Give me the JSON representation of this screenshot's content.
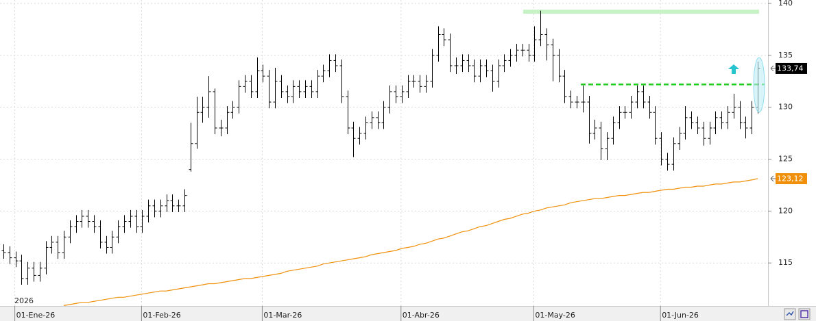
{
  "chart_data": {
    "type": "ohlc",
    "year_label": "2026",
    "categories": [
      null,
      null,
      "01-Ene-26",
      null,
      null,
      null,
      null,
      null,
      null,
      null,
      null,
      null,
      null,
      null,
      null,
      null,
      null,
      null,
      null,
      null,
      null,
      null,
      null,
      "01-Feb-26",
      null,
      null,
      null,
      null,
      null,
      null,
      null,
      null,
      null,
      null,
      null,
      null,
      null,
      null,
      null,
      null,
      null,
      null,
      null,
      "01-Mar-26",
      null,
      null,
      null,
      null,
      null,
      null,
      null,
      null,
      null,
      null,
      null,
      null,
      null,
      null,
      null,
      null,
      null,
      null,
      null,
      null,
      null,
      null,
      "01-Abr-26",
      null,
      null,
      null,
      null,
      null,
      null,
      null,
      null,
      null,
      null,
      null,
      null,
      null,
      null,
      null,
      null,
      null,
      null,
      null,
      null,
      null,
      "01-May-26",
      null,
      null,
      null,
      null,
      null,
      null,
      null,
      null,
      null,
      null,
      null,
      null,
      null,
      null,
      null,
      null,
      null,
      null,
      null,
      null,
      "01-Jun-26",
      null,
      null,
      null,
      null,
      null,
      null,
      null,
      null,
      null,
      null,
      null,
      null,
      null,
      null,
      null,
      null
    ],
    "bar_color": "#000000",
    "ohlc": [
      [
        116.2,
        116.8,
        115.4,
        116.0
      ],
      [
        116.0,
        116.6,
        114.9,
        115.5
      ],
      [
        115.5,
        116.1,
        114.6,
        115.2
      ],
      [
        115.2,
        115.8,
        112.9,
        113.5
      ],
      [
        113.5,
        115.1,
        112.9,
        114.5
      ],
      [
        114.5,
        115.1,
        113.2,
        113.8
      ],
      [
        113.8,
        115.1,
        113.2,
        114.5
      ],
      [
        114.5,
        117.1,
        113.9,
        116.5
      ],
      [
        116.5,
        117.6,
        115.9,
        117.0
      ],
      [
        117.0,
        117.6,
        115.4,
        116.0
      ],
      [
        116.0,
        118.1,
        115.4,
        117.5
      ],
      [
        117.5,
        119.1,
        116.9,
        118.5
      ],
      [
        118.5,
        119.6,
        117.9,
        119.0
      ],
      [
        119.0,
        120.1,
        118.4,
        119.5
      ],
      [
        119.5,
        120.1,
        118.4,
        119.0
      ],
      [
        119.0,
        119.6,
        117.9,
        118.5
      ],
      [
        118.5,
        119.1,
        116.4,
        117.0
      ],
      [
        117.0,
        117.6,
        115.9,
        116.5
      ],
      [
        116.5,
        118.1,
        115.9,
        117.5
      ],
      [
        117.5,
        119.1,
        116.9,
        118.5
      ],
      [
        118.5,
        119.6,
        117.9,
        119.0
      ],
      [
        119.0,
        120.1,
        118.4,
        119.5
      ],
      [
        119.5,
        120.1,
        117.9,
        118.5
      ],
      [
        118.5,
        120.1,
        117.9,
        119.5
      ],
      [
        119.5,
        121.1,
        118.9,
        120.5
      ],
      [
        120.5,
        121.1,
        119.4,
        120.0
      ],
      [
        120.0,
        121.1,
        119.4,
        120.5
      ],
      [
        120.5,
        121.6,
        119.9,
        121.0
      ],
      [
        121.0,
        121.6,
        119.9,
        120.5
      ],
      [
        120.5,
        121.1,
        119.9,
        120.5
      ],
      [
        120.5,
        122.1,
        119.9,
        121.5
      ],
      [
        124.0,
        128.5,
        123.8,
        126.5
      ],
      [
        126.5,
        131.0,
        126.0,
        129.5
      ],
      [
        129.5,
        131.0,
        128.5,
        130.0
      ],
      [
        130.0,
        133.0,
        129.0,
        131.5
      ],
      [
        131.5,
        131.8,
        127.4,
        128.0
      ],
      [
        128.0,
        128.8,
        127.2,
        128.0
      ],
      [
        128.0,
        130.1,
        127.4,
        129.5
      ],
      [
        129.5,
        130.6,
        128.9,
        130.0
      ],
      [
        130.0,
        132.6,
        129.4,
        132.0
      ],
      [
        132.0,
        133.1,
        131.4,
        132.5
      ],
      [
        132.5,
        133.1,
        130.9,
        131.5
      ],
      [
        131.5,
        134.8,
        130.9,
        133.5
      ],
      [
        133.5,
        134.1,
        132.4,
        133.0
      ],
      [
        133.0,
        133.6,
        129.9,
        130.5
      ],
      [
        130.5,
        133.8,
        129.9,
        132.5
      ],
      [
        132.5,
        133.1,
        130.9,
        131.5
      ],
      [
        131.5,
        132.1,
        130.4,
        131.0
      ],
      [
        131.0,
        132.6,
        130.4,
        132.0
      ],
      [
        132.0,
        132.6,
        130.9,
        131.5
      ],
      [
        131.5,
        132.6,
        130.9,
        132.0
      ],
      [
        132.0,
        132.6,
        130.9,
        131.5
      ],
      [
        131.5,
        133.6,
        130.9,
        133.0
      ],
      [
        133.0,
        134.1,
        132.4,
        133.5
      ],
      [
        133.5,
        135.1,
        132.9,
        134.5
      ],
      [
        134.5,
        135.1,
        133.4,
        134.0
      ],
      [
        134.0,
        134.6,
        130.4,
        131.0
      ],
      [
        131.0,
        131.6,
        127.4,
        128.0
      ],
      [
        128.0,
        128.6,
        125.2,
        127.0
      ],
      [
        127.0,
        128.1,
        126.4,
        127.5
      ],
      [
        127.5,
        129.1,
        126.9,
        128.5
      ],
      [
        128.5,
        129.6,
        127.9,
        129.0
      ],
      [
        129.0,
        129.6,
        127.9,
        128.5
      ],
      [
        128.5,
        130.6,
        127.9,
        130.0
      ],
      [
        130.0,
        132.1,
        129.4,
        131.5
      ],
      [
        131.5,
        132.1,
        130.4,
        131.0
      ],
      [
        131.0,
        132.1,
        130.4,
        131.5
      ],
      [
        131.5,
        133.1,
        130.9,
        132.5
      ],
      [
        132.5,
        133.1,
        131.9,
        132.5
      ],
      [
        132.5,
        133.1,
        131.4,
        132.0
      ],
      [
        132.0,
        133.1,
        131.4,
        132.5
      ],
      [
        132.5,
        135.6,
        131.9,
        135.0
      ],
      [
        135.0,
        137.8,
        134.4,
        137.0
      ],
      [
        137.0,
        137.6,
        135.9,
        136.5
      ],
      [
        136.5,
        137.1,
        133.4,
        134.0
      ],
      [
        134.0,
        134.8,
        133.2,
        134.0
      ],
      [
        134.0,
        135.1,
        133.4,
        134.5
      ],
      [
        134.5,
        135.1,
        133.4,
        134.0
      ],
      [
        134.0,
        134.6,
        132.4,
        133.0
      ],
      [
        133.0,
        134.6,
        132.4,
        134.0
      ],
      [
        134.0,
        134.6,
        132.9,
        133.5
      ],
      [
        133.5,
        134.1,
        131.5,
        132.5
      ],
      [
        132.5,
        134.6,
        131.9,
        134.0
      ],
      [
        134.0,
        135.1,
        133.4,
        134.5
      ],
      [
        134.5,
        135.6,
        133.9,
        135.0
      ],
      [
        135.0,
        136.1,
        134.4,
        135.5
      ],
      [
        135.5,
        136.1,
        134.9,
        135.5
      ],
      [
        135.5,
        136.1,
        134.4,
        135.0
      ],
      [
        135.0,
        137.8,
        134.4,
        136.5
      ],
      [
        136.5,
        139.3,
        135.9,
        137.0
      ],
      [
        137.0,
        137.6,
        134.5,
        136.0
      ],
      [
        136.0,
        136.6,
        132.5,
        135.0
      ],
      [
        135.0,
        135.6,
        132.4,
        133.0
      ],
      [
        133.0,
        133.6,
        130.4,
        131.0
      ],
      [
        131.0,
        131.6,
        129.9,
        130.5
      ],
      [
        130.5,
        131.1,
        129.9,
        130.5
      ],
      [
        130.5,
        132.1,
        129.5,
        130.5
      ],
      [
        130.5,
        131.1,
        126.5,
        127.5
      ],
      [
        127.5,
        128.8,
        126.9,
        128.0
      ],
      [
        128.0,
        128.6,
        124.9,
        126.0
      ],
      [
        126.0,
        127.6,
        124.9,
        127.0
      ],
      [
        127.0,
        129.1,
        126.4,
        128.5
      ],
      [
        128.5,
        130.1,
        127.9,
        129.5
      ],
      [
        129.5,
        130.1,
        128.9,
        129.5
      ],
      [
        129.5,
        131.1,
        128.9,
        130.5
      ],
      [
        130.5,
        132.1,
        129.9,
        131.5
      ],
      [
        131.5,
        132.1,
        129.9,
        130.5
      ],
      [
        130.5,
        131.1,
        128.9,
        129.5
      ],
      [
        129.5,
        130.1,
        126.4,
        127.0
      ],
      [
        127.0,
        127.6,
        124.4,
        125.0
      ],
      [
        125.0,
        125.6,
        123.9,
        124.5
      ],
      [
        124.5,
        127.1,
        123.9,
        126.5
      ],
      [
        126.5,
        128.1,
        125.9,
        127.5
      ],
      [
        127.5,
        130.1,
        126.9,
        129.0
      ],
      [
        129.0,
        129.6,
        127.9,
        128.5
      ],
      [
        128.5,
        129.1,
        127.4,
        128.0
      ],
      [
        128.0,
        128.6,
        126.3,
        127.0
      ],
      [
        127.0,
        128.6,
        126.4,
        128.0
      ],
      [
        128.0,
        129.6,
        127.4,
        129.0
      ],
      [
        129.0,
        129.6,
        127.9,
        128.5
      ],
      [
        128.5,
        130.1,
        127.9,
        129.5
      ],
      [
        129.5,
        131.3,
        128.9,
        130.0
      ],
      [
        130.0,
        130.6,
        127.9,
        128.5
      ],
      [
        128.5,
        129.1,
        127.0,
        128.0
      ],
      [
        128.0,
        130.6,
        127.4,
        130.0
      ],
      [
        130.0,
        134.4,
        129.4,
        133.74
      ]
    ],
    "ma": {
      "color": "#f0900a",
      "values": [
        null,
        null,
        null,
        null,
        null,
        null,
        null,
        null,
        null,
        null,
        110.9,
        111.0,
        111.1,
        111.2,
        111.2,
        111.3,
        111.4,
        111.5,
        111.6,
        111.7,
        111.7,
        111.8,
        111.9,
        112.0,
        112.1,
        112.2,
        112.3,
        112.3,
        112.4,
        112.5,
        112.6,
        112.7,
        112.8,
        112.9,
        113.0,
        113.0,
        113.1,
        113.2,
        113.3,
        113.4,
        113.5,
        113.5,
        113.6,
        113.7,
        113.8,
        113.9,
        114.0,
        114.2,
        114.3,
        114.4,
        114.5,
        114.6,
        114.7,
        114.9,
        115.0,
        115.1,
        115.2,
        115.3,
        115.4,
        115.5,
        115.6,
        115.8,
        115.9,
        116.0,
        116.1,
        116.2,
        116.4,
        116.5,
        116.6,
        116.8,
        116.9,
        117.1,
        117.3,
        117.4,
        117.6,
        117.8,
        118.0,
        118.1,
        118.3,
        118.5,
        118.6,
        118.8,
        119.0,
        119.2,
        119.3,
        119.5,
        119.7,
        119.8,
        120.0,
        120.1,
        120.3,
        120.4,
        120.5,
        120.6,
        120.8,
        120.9,
        121.0,
        121.1,
        121.2,
        121.2,
        121.3,
        121.4,
        121.5,
        121.5,
        121.6,
        121.7,
        121.8,
        121.8,
        121.9,
        122.0,
        122.1,
        122.1,
        122.2,
        122.3,
        122.3,
        122.4,
        122.4,
        122.5,
        122.6,
        122.6,
        122.7,
        122.8,
        122.8,
        122.9,
        123.0,
        123.12
      ]
    },
    "levels": [
      {
        "value": 139.2,
        "color": "#c6f2c6",
        "style": "solid"
      },
      {
        "value": 132.2,
        "color": "#22cc22",
        "style": "dashed"
      }
    ],
    "price_labels": [
      {
        "value": 133.74,
        "label": "133,74",
        "color": "#000000"
      },
      {
        "value": 123.12,
        "label": "123,12",
        "color": "#f0900a"
      }
    ],
    "ylim": [
      110.86,
      140.33
    ],
    "yticks": [
      115,
      120,
      125,
      130,
      135,
      140
    ],
    "grid": true
  }
}
